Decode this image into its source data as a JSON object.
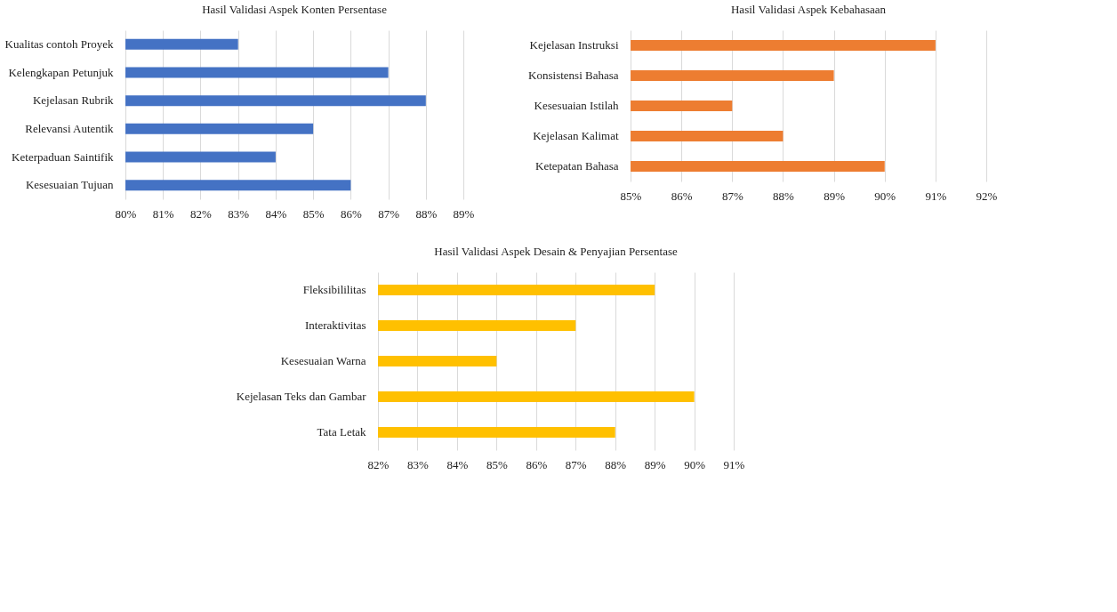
{
  "chart_data": [
    {
      "type": "bar",
      "orientation": "horizontal",
      "title": "Hasil Validasi Aspek Konten Persentase",
      "categories": [
        "Kualitas contoh Proyek",
        "Kelengkapan Petunjuk",
        "Kejelasan Rubrik",
        "Relevansi Autentik",
        "Keterpaduan Saintifik",
        "Kesesuaian Tujuan"
      ],
      "values": [
        83,
        87,
        88,
        85,
        84,
        86
      ],
      "color": "#4472c4",
      "xlim": [
        80,
        89
      ],
      "xticks": [
        {
          "value": 80,
          "label": "80%"
        },
        {
          "value": 81,
          "label": "81%"
        },
        {
          "value": 82,
          "label": "82%"
        },
        {
          "value": 83,
          "label": "83%"
        },
        {
          "value": 84,
          "label": "84%"
        },
        {
          "value": 85,
          "label": "85%"
        },
        {
          "value": 86,
          "label": "86%"
        },
        {
          "value": 87,
          "label": "87%"
        },
        {
          "value": 88,
          "label": "88%"
        },
        {
          "value": 89,
          "label": "89%"
        }
      ],
      "grid": "x"
    },
    {
      "type": "bar",
      "orientation": "horizontal",
      "title": "Hasil Validasi Aspek Kebahasaan",
      "categories": [
        "Kejelasan Instruksi",
        "Konsistensi Bahasa",
        "Kesesuaian Istilah",
        "Kejelasan Kalimat",
        "Ketepatan Bahasa"
      ],
      "values": [
        91,
        89,
        87,
        88,
        90
      ],
      "color": "#ed7d31",
      "xlim": [
        85,
        92
      ],
      "xticks": [
        {
          "value": 85,
          "label": "85%"
        },
        {
          "value": 86,
          "label": "86%"
        },
        {
          "value": 87,
          "label": "87%"
        },
        {
          "value": 88,
          "label": "88%"
        },
        {
          "value": 89,
          "label": "89%"
        },
        {
          "value": 90,
          "label": "90%"
        },
        {
          "value": 91,
          "label": "91%"
        },
        {
          "value": 92,
          "label": "92%"
        }
      ],
      "grid": "x"
    },
    {
      "type": "bar",
      "orientation": "horizontal",
      "title": "Hasil Validasi Aspek Desain & Penyajian Persentase",
      "categories": [
        "Fleksibililitas",
        "Interaktivitas",
        "Kesesuaian Warna",
        "Kejelasan Teks dan Gambar",
        "Tata Letak"
      ],
      "values": [
        89,
        87,
        85,
        90,
        88
      ],
      "color": "#ffc000",
      "xlim": [
        82,
        91
      ],
      "xticks": [
        {
          "value": 82,
          "label": "82%"
        },
        {
          "value": 83,
          "label": "83%"
        },
        {
          "value": 84,
          "label": "84%"
        },
        {
          "value": 85,
          "label": "85%"
        },
        {
          "value": 86,
          "label": "86%"
        },
        {
          "value": 87,
          "label": "87%"
        },
        {
          "value": 88,
          "label": "88%"
        },
        {
          "value": 89,
          "label": "89%"
        },
        {
          "value": 90,
          "label": "90%"
        },
        {
          "value": 91,
          "label": "91%"
        }
      ],
      "grid": "x"
    }
  ]
}
